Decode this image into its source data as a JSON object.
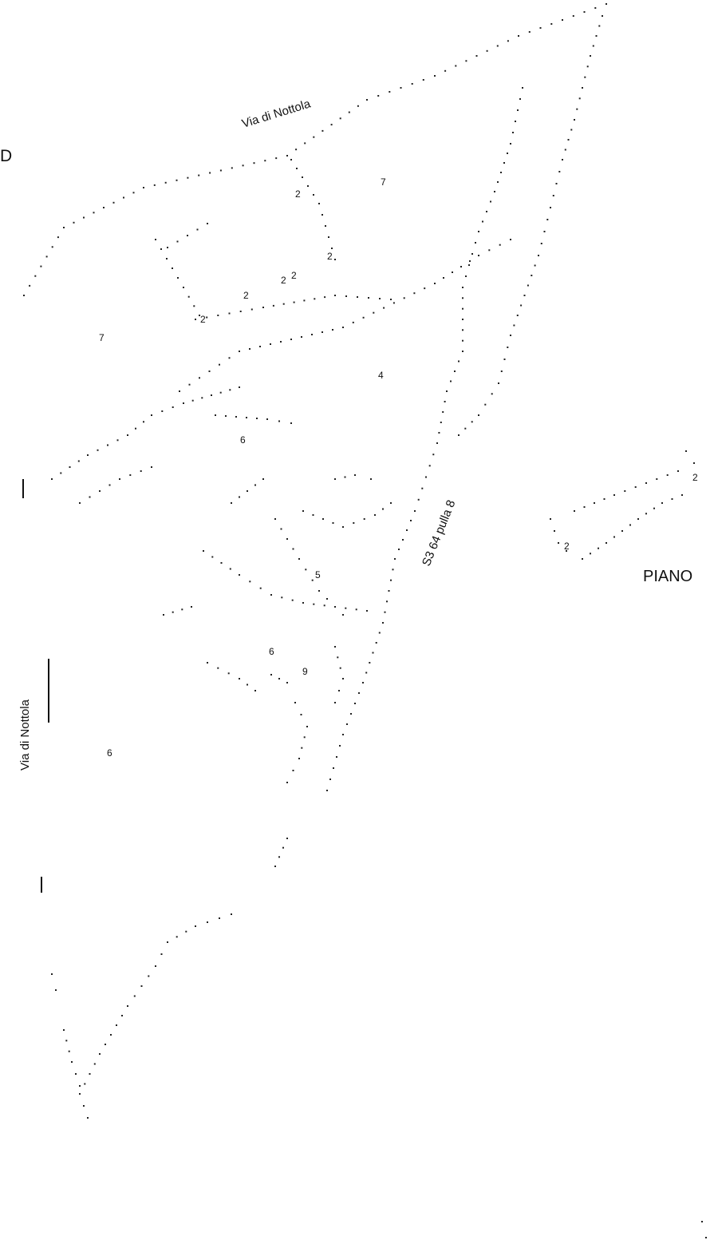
{
  "map": {
    "street_labels": {
      "via_nottola_top": "Via di Nottola",
      "via_nottola_left": "Via di Nottola",
      "road_label": "S3 64 pulla 8"
    },
    "area_labels": {
      "piano": "PIANO",
      "edge_letter": "D"
    },
    "house_numbers": {
      "n1": "2",
      "n2": "7",
      "n3": "2",
      "n4": "2",
      "n5": "2",
      "n6": "2",
      "n7": "2",
      "n8": "7",
      "n9": "4",
      "n10": "6",
      "n11": "5",
      "n12": "6",
      "n13": "9",
      "n14": "6",
      "n15": "2",
      "n16": "2"
    },
    "colors": {
      "background": "#ffffff",
      "ink": "#111111"
    }
  }
}
